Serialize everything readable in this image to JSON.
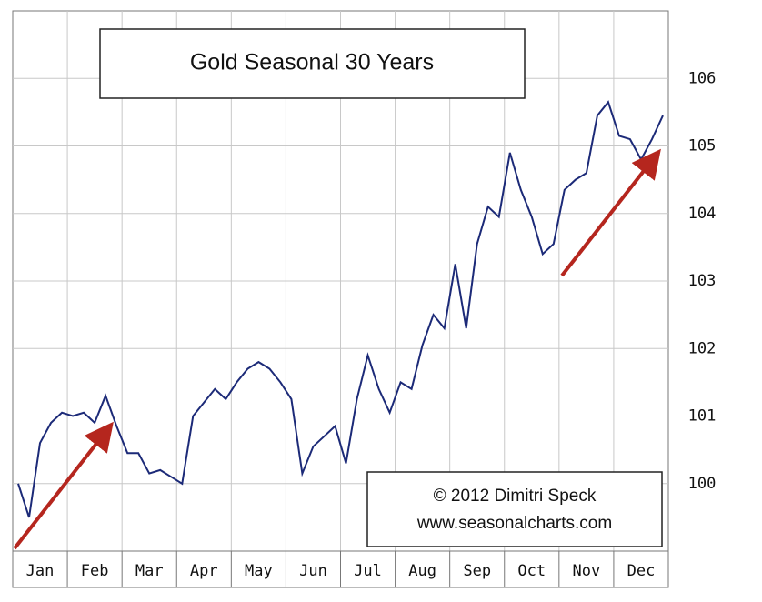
{
  "chart_data": {
    "type": "line",
    "title": "Gold Seasonal 30 Years",
    "annotations": [
      "© 2012  Dimitri Speck",
      "www.seasonalcharts.com"
    ],
    "categories": [
      null,
      null,
      "Jan",
      null,
      null,
      null,
      null,
      "Feb",
      null,
      null,
      null,
      null,
      "Mar",
      null,
      null,
      null,
      null,
      "Apr",
      null,
      null,
      null,
      null,
      "May",
      null,
      null,
      null,
      null,
      "Jun",
      null,
      null,
      null,
      null,
      "Jul",
      null,
      null,
      null,
      null,
      "Aug",
      null,
      null,
      null,
      null,
      "Sep",
      null,
      null,
      null,
      null,
      "Oct",
      null,
      null,
      null,
      null,
      "Nov",
      null,
      null,
      null,
      null,
      "Dec",
      null,
      null
    ],
    "series": [
      {
        "name": "Gold",
        "color": "#1c2a78",
        "values": [
          100.0,
          99.5,
          100.6,
          100.9,
          101.05,
          101.0,
          101.05,
          100.9,
          101.3,
          100.85,
          100.45,
          100.45,
          100.15,
          100.2,
          100.1,
          100.0,
          101.0,
          101.2,
          101.4,
          101.25,
          101.5,
          101.7,
          101.8,
          101.7,
          101.5,
          101.25,
          100.15,
          100.55,
          100.7,
          100.85,
          100.3,
          101.25,
          101.9,
          101.4,
          101.05,
          101.5,
          101.4,
          102.05,
          102.5,
          102.3,
          103.25,
          102.3,
          103.55,
          104.1,
          103.95,
          104.9,
          104.35,
          103.95,
          103.4,
          103.55,
          104.35,
          104.5,
          104.6,
          105.45,
          105.65,
          105.15,
          105.1,
          104.8,
          105.1,
          105.45
        ]
      }
    ],
    "ylim": [
      99,
      107
    ],
    "yticks": [
      100,
      101,
      102,
      103,
      104,
      105,
      106
    ],
    "grid": true
  }
}
